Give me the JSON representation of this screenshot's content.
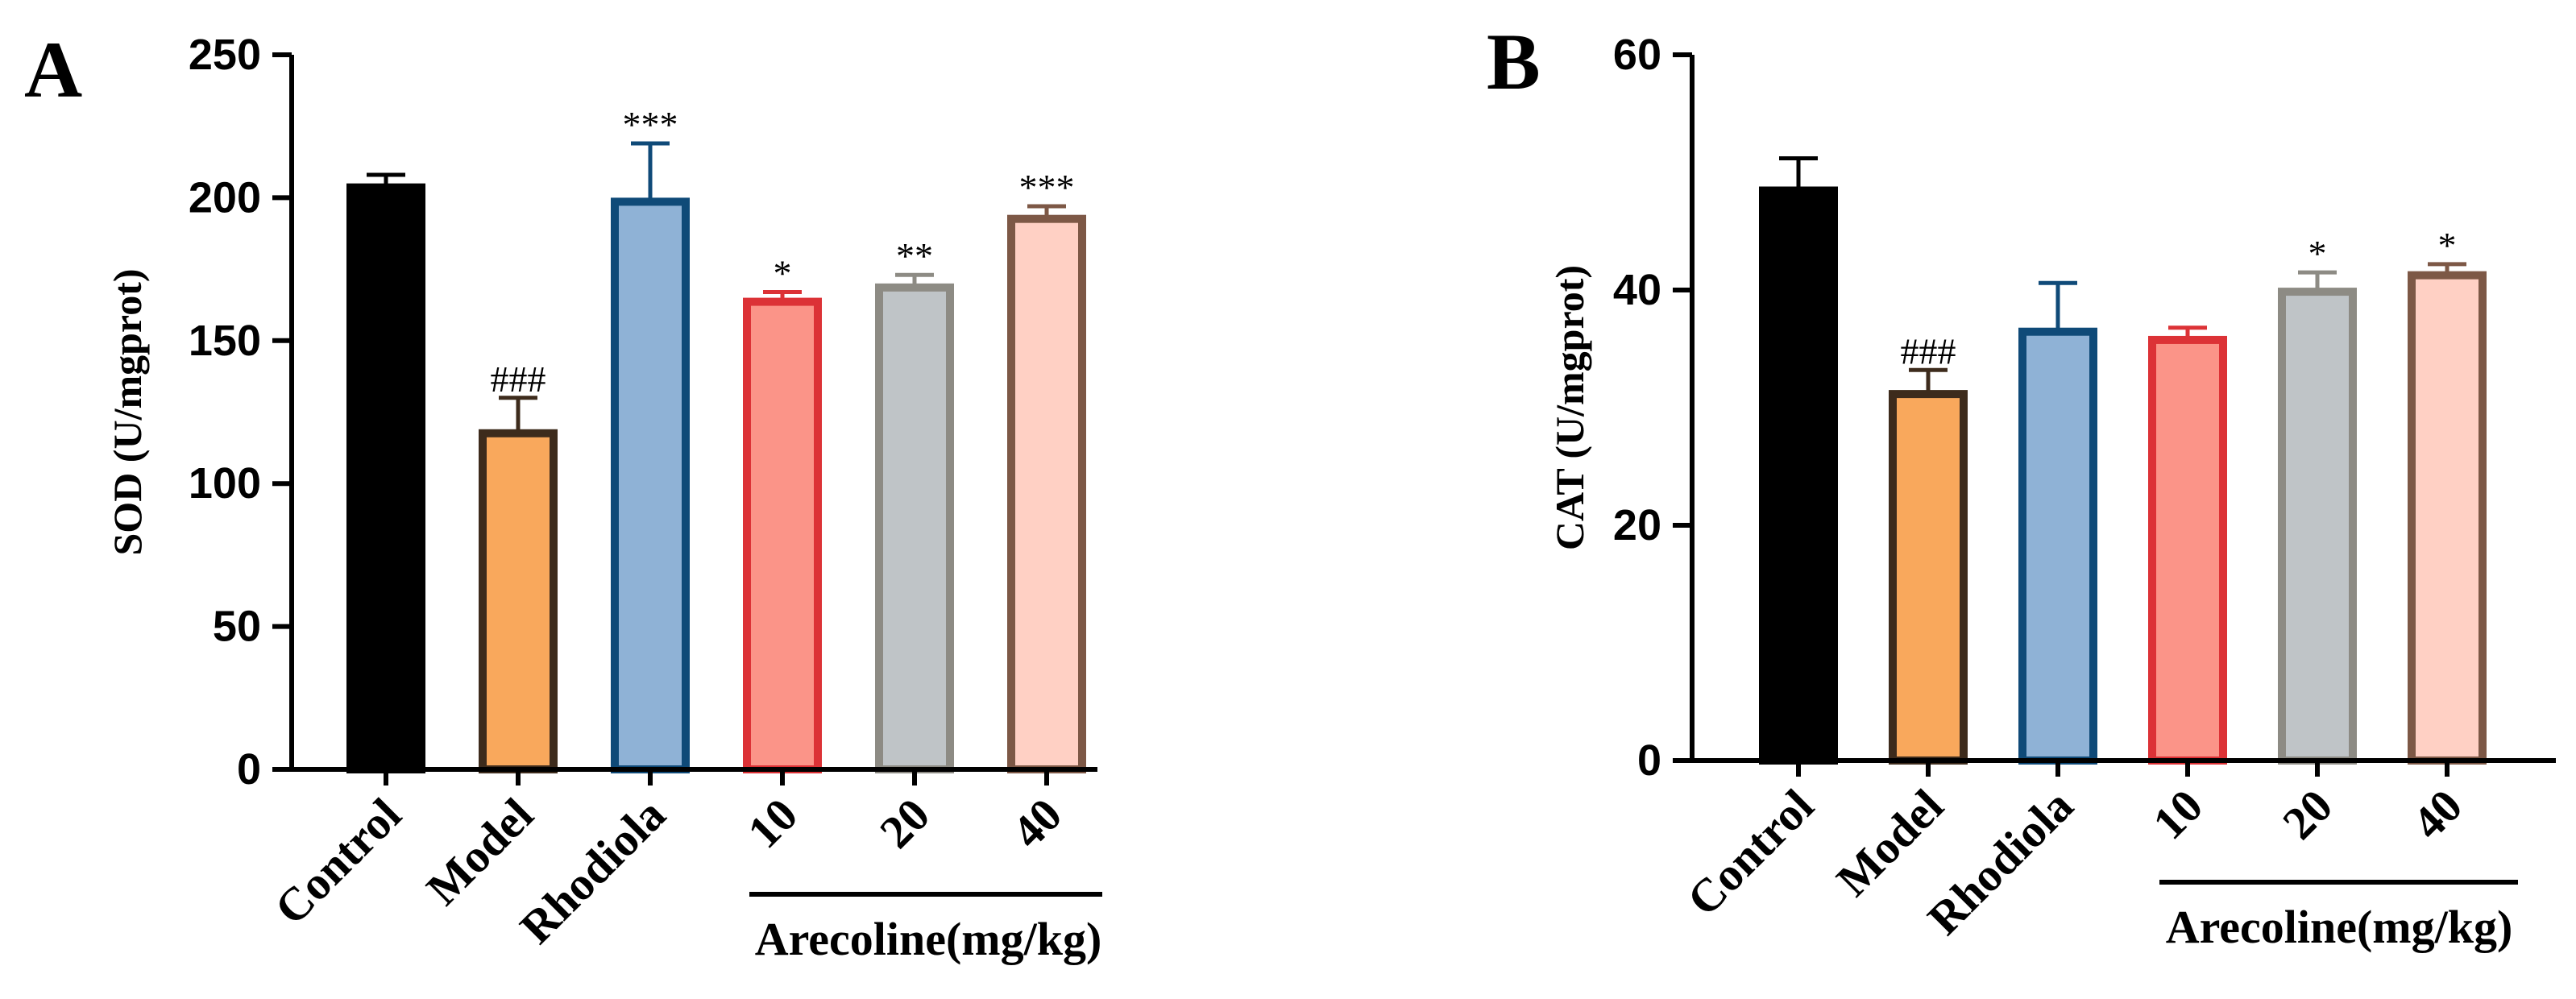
{
  "chart_data": [
    {
      "type": "bar",
      "panel_label": "A",
      "ylabel": "SOD (U/mgprot)",
      "ylim": [
        0,
        250
      ],
      "yticks": [
        0,
        50,
        100,
        150,
        200,
        250
      ],
      "categories": [
        "Control",
        "Model",
        "Rhodiola",
        "10",
        "20",
        "40"
      ],
      "values": [
        205,
        119,
        200,
        165,
        170,
        194
      ],
      "errors": [
        3,
        11,
        19,
        2,
        3,
        3
      ],
      "annotations": [
        "",
        "###",
        "***",
        "*",
        "**",
        "***"
      ],
      "group_label": "Arecoline(mg/kg)",
      "fill_colors": [
        "#000000",
        "#f9a85c",
        "#8fb2d6",
        "#fb9488",
        "#bfc4c7",
        "#ffd0c4"
      ],
      "edge_colors": [
        "#000000",
        "#3d2b1c",
        "#0f4a78",
        "#dc3236",
        "#8d8b84",
        "#7d5846"
      ]
    },
    {
      "type": "bar",
      "panel_label": "B",
      "ylabel": "CAT (U/mgprot)",
      "ylim": [
        0,
        60
      ],
      "yticks": [
        0,
        20,
        40,
        60
      ],
      "categories": [
        "Control",
        "Model",
        "Rhodiola",
        "10",
        "20",
        "40"
      ],
      "values": [
        48.8,
        31.5,
        36.8,
        36.1,
        40.2,
        41.6
      ],
      "errors": [
        2.4,
        1.7,
        3.8,
        0.7,
        1.3,
        0.6
      ],
      "annotations": [
        "",
        "###",
        "",
        "",
        "*",
        "*"
      ],
      "group_label": "Arecoline(mg/kg)",
      "fill_colors": [
        "#000000",
        "#f9a85c",
        "#8fb2d6",
        "#fb9488",
        "#bfc4c7",
        "#ffd0c4"
      ],
      "edge_colors": [
        "#000000",
        "#3d2b1c",
        "#0f4a78",
        "#dc3236",
        "#8d8b84",
        "#7d5846"
      ]
    }
  ]
}
